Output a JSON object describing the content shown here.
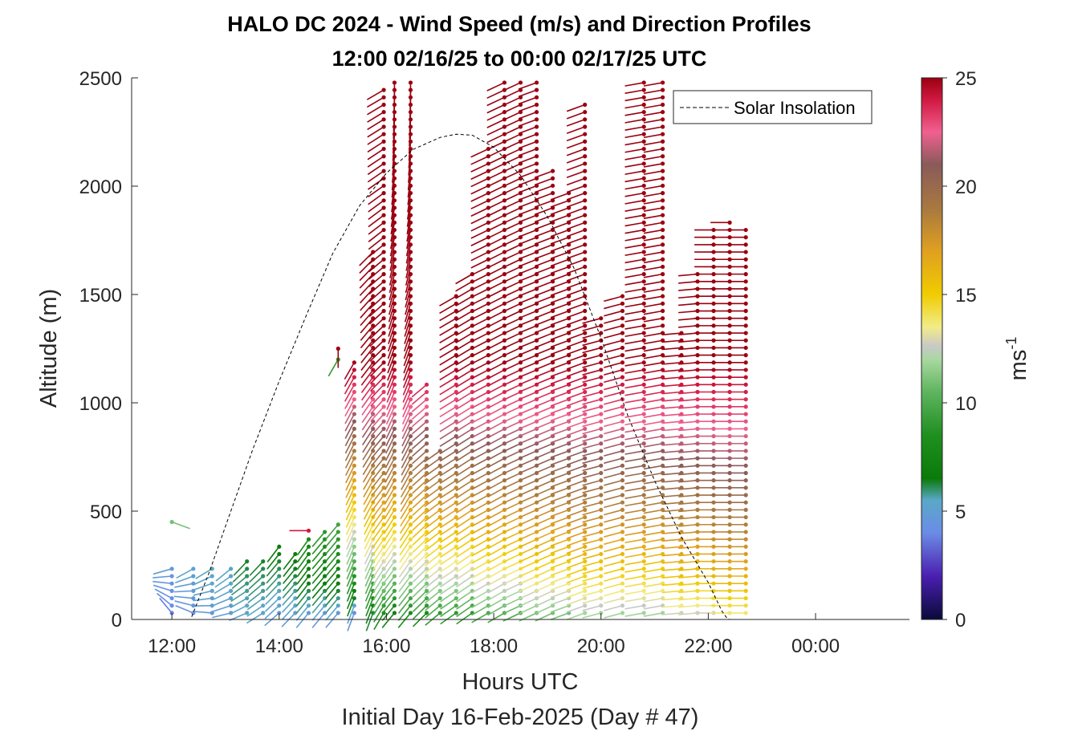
{
  "chart_data": {
    "type": "wind-barb-profile",
    "title": "HALO DC 2024 - Wind Speed (m/s) and Direction Profiles",
    "subtitle": "12:00 02/16/25 to 00:00 02/17/25  UTC",
    "xlabel": "Hours UTC",
    "xlabel2": "Initial Day 16-Feb-2025 (Day # 47)",
    "ylabel": "Altitude (m)",
    "xlim": [
      11.25,
      25.75
    ],
    "ylim": [
      0,
      2500
    ],
    "x_ticks": [
      12,
      14,
      16,
      18,
      20,
      22,
      24
    ],
    "x_tick_labels": [
      "12:00",
      "14:00",
      "16:00",
      "18:00",
      "20:00",
      "22:00",
      "00:00"
    ],
    "y_ticks": [
      0,
      500,
      1000,
      1500,
      2000,
      2500
    ],
    "y_tick_labels": [
      "0",
      "500",
      "1000",
      "1500",
      "2000",
      "2500"
    ],
    "colorbar": {
      "label": "ms",
      "label_exponent": "-1",
      "range": [
        0,
        25
      ],
      "ticks": [
        0,
        5,
        10,
        15,
        20,
        25
      ],
      "tick_labels": [
        "0",
        "5",
        "10",
        "15",
        "20",
        "25"
      ],
      "colors": [
        {
          "at": 0,
          "color": "#0a0a3a"
        },
        {
          "at": 2,
          "color": "#4a1fb0"
        },
        {
          "at": 4,
          "color": "#6b8ce6"
        },
        {
          "at": 5.5,
          "color": "#5aa8c8"
        },
        {
          "at": 6.5,
          "color": "#0a7a0a"
        },
        {
          "at": 8.5,
          "color": "#1f8f1f"
        },
        {
          "at": 10.5,
          "color": "#5fb45f"
        },
        {
          "at": 12,
          "color": "#a8d8a0"
        },
        {
          "at": 12.6,
          "color": "#c8c8c8"
        },
        {
          "at": 13.5,
          "color": "#f2ec88"
        },
        {
          "at": 15,
          "color": "#f0cc00"
        },
        {
          "at": 17,
          "color": "#e0a020"
        },
        {
          "at": 19,
          "color": "#a87840"
        },
        {
          "at": 21,
          "color": "#8a5a5a"
        },
        {
          "at": 22.5,
          "color": "#f06090"
        },
        {
          "at": 24,
          "color": "#d01840"
        },
        {
          "at": 25,
          "color": "#9a0010"
        }
      ]
    },
    "legend": {
      "entries": [
        "Solar Insolation"
      ],
      "position": "top-right"
    },
    "solar_insolation": {
      "style": "dashed",
      "color": "#000000",
      "x": [
        11.0,
        12.35,
        12.7,
        13.0,
        13.5,
        14.0,
        14.5,
        15.0,
        15.5,
        16.0,
        16.5,
        17.0,
        17.3,
        17.6,
        18.0,
        18.5,
        19.0,
        19.5,
        20.0,
        20.5,
        21.0,
        21.5,
        22.0,
        22.25,
        22.35,
        22.4,
        25.75
      ],
      "y": [
        0,
        0,
        220,
        430,
        780,
        1100,
        1400,
        1690,
        1910,
        2060,
        2170,
        2225,
        2240,
        2235,
        2180,
        2050,
        1860,
        1620,
        1300,
        940,
        640,
        380,
        170,
        40,
        5,
        0,
        0
      ]
    },
    "profiles": [
      {
        "t": 12.0,
        "alt_max": 250,
        "speed_low": 3.5,
        "speed_high": 8,
        "dir_low": 330,
        "dir_high": 200,
        "extra": [
          {
            "alt": 450,
            "speed": 11,
            "dir": 110
          }
        ]
      },
      {
        "t": 12.4,
        "alt_max": 250,
        "speed_low": 4,
        "speed_high": 8,
        "dir_low": 300,
        "dir_high": 200
      },
      {
        "t": 12.75,
        "alt_max": 250,
        "speed_low": 4.5,
        "speed_high": 8,
        "dir_low": 280,
        "dir_high": 210
      },
      {
        "t": 13.1,
        "alt_max": 250,
        "speed_low": 4.5,
        "speed_high": 8,
        "dir_low": 260,
        "dir_high": 210
      },
      {
        "t": 13.4,
        "alt_max": 300,
        "speed_low": 5,
        "speed_high": 9,
        "dir_low": 250,
        "dir_high": 210
      },
      {
        "t": 13.7,
        "alt_max": 300,
        "speed_low": 5,
        "speed_high": 9,
        "dir_low": 240,
        "dir_high": 215
      },
      {
        "t": 14.0,
        "alt_max": 340,
        "speed_low": 4.5,
        "speed_high": 10,
        "dir_low": 230,
        "dir_high": 215
      },
      {
        "t": 14.3,
        "alt_max": 330,
        "speed_low": 4.5,
        "speed_high": 11,
        "dir_low": 225,
        "dir_high": 215
      },
      {
        "t": 14.55,
        "alt_max": 380,
        "speed_low": 4.5,
        "speed_high": 13,
        "dir_low": 220,
        "dir_high": 215,
        "extra": [
          {
            "alt": 410,
            "speed": 24,
            "dir": 270
          }
        ]
      },
      {
        "t": 14.85,
        "alt_max": 420,
        "speed_low": 4,
        "speed_high": 15,
        "dir_low": 220,
        "dir_high": 220
      },
      {
        "t": 15.1,
        "alt_max": 450,
        "speed_low": 4,
        "speed_high": 16,
        "dir_low": 220,
        "dir_high": 220,
        "extra": [
          {
            "alt": 1200,
            "speed": 9,
            "dir": 210
          },
          {
            "alt": 1250,
            "speed": 25,
            "dir": 180
          }
        ]
      },
      {
        "t": 15.4,
        "alt_max": 1200,
        "speed_low": 3,
        "speed_high": 25,
        "dir_low": 200,
        "dir_high": 210
      },
      {
        "t": 15.75,
        "alt_max": 1700,
        "speed_low": 5,
        "speed_high": 25,
        "dir_low": 200,
        "dir_high": 225
      },
      {
        "t": 15.95,
        "alt_max": 2450,
        "speed_low": 7,
        "speed_high": 25,
        "dir_low": 210,
        "dir_high": 240
      },
      {
        "t": 16.15,
        "alt_max": 2500,
        "speed_low": 6,
        "speed_high": 25,
        "dir_low": 220,
        "dir_high": 180
      },
      {
        "t": 16.45,
        "alt_max": 2500,
        "speed_low": 7,
        "speed_high": 25,
        "dir_low": 220,
        "dir_high": 180
      },
      {
        "t": 16.75,
        "alt_max": 1100,
        "speed_low": 7,
        "speed_high": 25,
        "dir_low": 225,
        "dir_high": 230
      },
      {
        "t": 17.0,
        "alt_max": 800,
        "speed_low": 8,
        "speed_high": 25,
        "dir_low": 230,
        "dir_high": 235
      },
      {
        "t": 17.3,
        "alt_max": 1500,
        "speed_low": 8,
        "speed_high": 25,
        "dir_low": 235,
        "dir_high": 240
      },
      {
        "t": 17.6,
        "alt_max": 1600,
        "speed_low": 8,
        "speed_high": 25,
        "dir_low": 235,
        "dir_high": 240
      },
      {
        "t": 17.9,
        "alt_max": 2200,
        "speed_low": 9,
        "speed_high": 25,
        "dir_low": 240,
        "dir_high": 245
      },
      {
        "t": 18.2,
        "alt_max": 2500,
        "speed_low": 9,
        "speed_high": 25,
        "dir_low": 240,
        "dir_high": 245
      },
      {
        "t": 18.5,
        "alt_max": 2500,
        "speed_low": 9,
        "speed_high": 25,
        "dir_low": 245,
        "dir_high": 245
      },
      {
        "t": 18.8,
        "alt_max": 2500,
        "speed_low": 10,
        "speed_high": 25,
        "dir_low": 245,
        "dir_high": 250
      },
      {
        "t": 19.1,
        "alt_max": 2100,
        "speed_low": 10,
        "speed_high": 25,
        "dir_low": 245,
        "dir_high": 250
      },
      {
        "t": 19.4,
        "alt_max": 2000,
        "speed_low": 10,
        "speed_high": 25,
        "dir_low": 250,
        "dir_high": 250
      },
      {
        "t": 19.7,
        "alt_max": 2400,
        "speed_low": 11,
        "speed_high": 25,
        "dir_low": 250,
        "dir_high": 250
      },
      {
        "t": 20.0,
        "alt_max": 1400,
        "speed_low": 11,
        "speed_high": 25,
        "dir_low": 255,
        "dir_high": 255
      },
      {
        "t": 20.4,
        "alt_max": 1500,
        "speed_low": 11,
        "speed_high": 25,
        "dir_low": 255,
        "dir_high": 255
      },
      {
        "t": 20.8,
        "alt_max": 2500,
        "speed_low": 11,
        "speed_high": 25,
        "dir_low": 260,
        "dir_high": 260
      },
      {
        "t": 21.15,
        "alt_max": 2500,
        "speed_low": 11,
        "speed_high": 25,
        "dir_low": 260,
        "dir_high": 260
      },
      {
        "t": 21.5,
        "alt_max": 1350,
        "speed_low": 12,
        "speed_high": 25,
        "dir_low": 265,
        "dir_high": 265
      },
      {
        "t": 21.8,
        "alt_max": 1600,
        "speed_low": 12,
        "speed_high": 25,
        "dir_low": 265,
        "dir_high": 265
      },
      {
        "t": 22.1,
        "alt_max": 1800,
        "speed_low": 12,
        "speed_high": 25,
        "dir_low": 270,
        "dir_high": 270
      },
      {
        "t": 22.4,
        "alt_max": 1850,
        "speed_low": 13,
        "speed_high": 25,
        "dir_low": 270,
        "dir_high": 270
      },
      {
        "t": 22.7,
        "alt_max": 1800,
        "speed_low": 13,
        "speed_high": 25,
        "dir_low": 270,
        "dir_high": 270
      }
    ]
  }
}
